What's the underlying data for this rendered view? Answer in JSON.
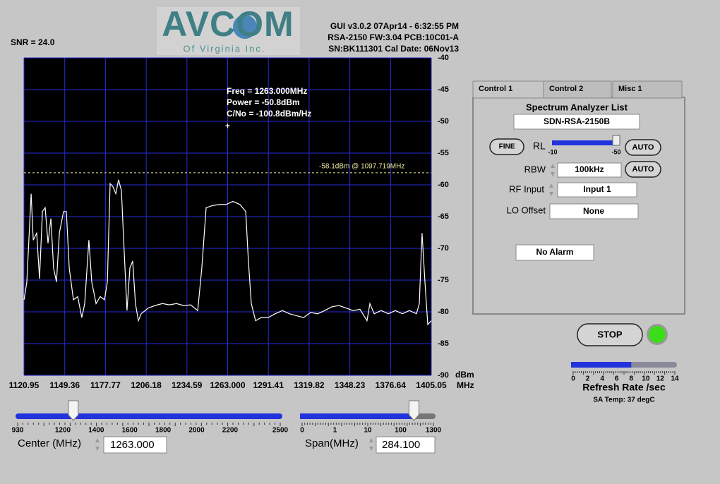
{
  "header": {
    "snr": "SNR = 24.0",
    "logo": {
      "name": "AVCOM",
      "tagline": "Of Virginia Inc."
    },
    "info": [
      "GUI v3.0.2  07Apr14 - 6:32:55 PM",
      "RSA-2150 FW:3.04 PCB:10C01-A",
      "SN:BK111301  Cal Date: 06Nov13"
    ]
  },
  "chart_data": {
    "type": "line",
    "color": "#ffffff",
    "grid": true,
    "grid_color": "#2a2ad8",
    "x": [
      1121.0,
      1122.9,
      1125.9,
      1127.4,
      1129.8,
      1131.8,
      1133.8,
      1135.7,
      1137.7,
      1139.7,
      1141.6,
      1143.6,
      1145.6,
      1148.5,
      1150.5,
      1152.5,
      1155.4,
      1158.4,
      1161.3,
      1163.3,
      1166.2,
      1168.2,
      1171.2,
      1174.1,
      1177.1,
      1179.1,
      1181.0,
      1183.0,
      1185.0,
      1186.9,
      1188.9,
      1190.9,
      1192.8,
      1194.8,
      1196.8,
      1198.7,
      1200.7,
      1202.7,
      1207.6,
      1212.5,
      1217.5,
      1222.4,
      1227.3,
      1232.2,
      1237.2,
      1242.1,
      1245.0,
      1248.0,
      1251.9,
      1256.8,
      1261.8,
      1266.7,
      1271.6,
      1275.6,
      1277.5,
      1279.5,
      1282.5,
      1286.4,
      1291.3,
      1296.2,
      1301.2,
      1306.1,
      1311.0,
      1316.0,
      1320.9,
      1325.8,
      1330.7,
      1335.7,
      1340.6,
      1345.5,
      1350.4,
      1355.3,
      1360.2,
      1362.2,
      1365.2,
      1370.1,
      1375.1,
      1380.0,
      1384.9,
      1389.8,
      1394.7,
      1396.7,
      1398.6,
      1400.6,
      1402.6,
      1405.0
    ],
    "values": [
      -78.1,
      -75.3,
      -61.4,
      -68.7,
      -67.6,
      -74.8,
      -64.2,
      -63.6,
      -69.2,
      -65.3,
      -73.1,
      -75.3,
      -67.6,
      -64.2,
      -64.2,
      -73.1,
      -78.1,
      -77.6,
      -80.9,
      -78.7,
      -68.7,
      -75.3,
      -78.7,
      -77.6,
      -78.1,
      -75.3,
      -59.8,
      -60.3,
      -61.4,
      -59.2,
      -60.9,
      -70.9,
      -79.8,
      -73.1,
      -72.0,
      -78.7,
      -81.4,
      -80.3,
      -79.4,
      -79.0,
      -78.7,
      -78.9,
      -78.7,
      -79.0,
      -78.9,
      -79.8,
      -73.1,
      -63.6,
      -63.3,
      -63.1,
      -63.1,
      -62.6,
      -63.1,
      -64.2,
      -72.0,
      -78.7,
      -81.4,
      -80.9,
      -80.9,
      -80.3,
      -79.8,
      -80.3,
      -80.6,
      -80.9,
      -80.1,
      -80.3,
      -79.8,
      -79.2,
      -79.0,
      -79.4,
      -79.8,
      -79.6,
      -81.4,
      -78.7,
      -80.3,
      -79.8,
      -80.3,
      -79.8,
      -80.3,
      -79.8,
      -80.3,
      -78.7,
      -67.6,
      -75.3,
      -82.0,
      -81.4
    ],
    "xlim": [
      1120.95,
      1405.05
    ],
    "ylim": [
      -90,
      -40
    ],
    "xticks": [
      1120.95,
      1149.36,
      1177.77,
      1206.18,
      1234.59,
      {
        "value": 1263,
        "label": "1263.000"
      },
      1291.41,
      1319.82,
      1348.23,
      1376.64,
      1405.05
    ],
    "yticks": [
      -40,
      -45,
      -50,
      -55,
      -60,
      -65,
      -70,
      -75,
      -80,
      -85,
      -90
    ],
    "x_unit": "MHz",
    "y_unit": "dBm",
    "marker": {
      "x": 1263,
      "y": -50.8,
      "symbol": "+",
      "lines": [
        "Freq = 1263.000MHz",
        "Power = -50.8dBm",
        "C/No = -100.8dBm/Hz"
      ]
    },
    "reference_line": {
      "value": -58.1,
      "label": "-58.1dBm @ 1097.719MHz",
      "color": "#e8e8a0"
    }
  },
  "panel": {
    "tabs": [
      "Control 1",
      "Control 2",
      "Misc 1"
    ],
    "list_label": "Spectrum Analyzer List",
    "list_value": "SDN-RSA-2150B",
    "fine": "FINE",
    "rl_label": "RL",
    "rl_min": "-10",
    "rl_max": "-50",
    "auto": "AUTO",
    "rbw_label": "RBW",
    "rbw_value": "100kHz",
    "rf_label": "RF Input",
    "rf_value": "Input 1",
    "lo_label": "LO Offset",
    "lo_value": "None",
    "alarm": "No Alarm"
  },
  "stop": "STOP",
  "refresh": {
    "ticks": [
      0,
      2,
      4,
      6,
      8,
      10,
      12,
      14
    ],
    "value": 8,
    "label": "Refresh Rate /sec",
    "temp": "SA Temp: 37 degC"
  },
  "center": {
    "ticks": [
      930,
      1200,
      1400,
      1600,
      1800,
      2000,
      2200,
      2500
    ],
    "value": 1263,
    "label": "Center (MHz)",
    "entry": "1263.000"
  },
  "span": {
    "ticks": [
      0,
      1,
      10,
      100,
      1300
    ],
    "value": 284.1,
    "label": "Span(MHz)",
    "entry": "284.100"
  }
}
